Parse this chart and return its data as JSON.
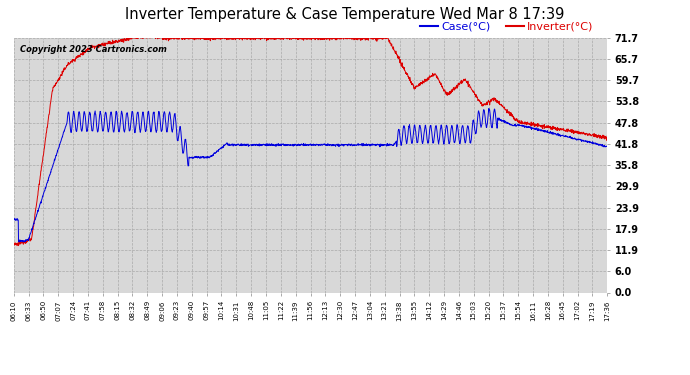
{
  "title": "Inverter Temperature & Case Temperature Wed Mar 8 17:39",
  "copyright": "Copyright 2023 Cartronics.com",
  "legend_case": "Case(°C)",
  "legend_inverter": "Inverter(°C)",
  "yticks": [
    0.0,
    6.0,
    11.9,
    17.9,
    23.9,
    29.9,
    35.8,
    41.8,
    47.8,
    53.8,
    59.7,
    65.7,
    71.7
  ],
  "ylim": [
    0.0,
    71.7
  ],
  "xtick_labels": [
    "06:10",
    "06:33",
    "06:50",
    "07:07",
    "07:24",
    "07:41",
    "07:58",
    "08:15",
    "08:32",
    "08:49",
    "09:06",
    "09:23",
    "09:40",
    "09:57",
    "10:14",
    "10:31",
    "10:48",
    "11:05",
    "11:22",
    "11:39",
    "11:56",
    "12:13",
    "12:30",
    "12:47",
    "13:04",
    "13:21",
    "13:38",
    "13:55",
    "14:12",
    "14:29",
    "14:46",
    "15:03",
    "15:20",
    "15:37",
    "15:54",
    "16:11",
    "16:28",
    "16:45",
    "17:02",
    "17:19",
    "17:36"
  ],
  "bg_color": "#ffffff",
  "plot_bg_color": "#d8d8d8",
  "grid_color": "#aaaaaa",
  "case_color": "#0000dd",
  "inverter_color": "#dd0000",
  "title_color": "#000000",
  "copyright_color": "#000000",
  "legend_case_color": "#0000dd",
  "legend_inverter_color": "#dd0000",
  "figsize": [
    6.9,
    3.75
  ],
  "dpi": 100
}
